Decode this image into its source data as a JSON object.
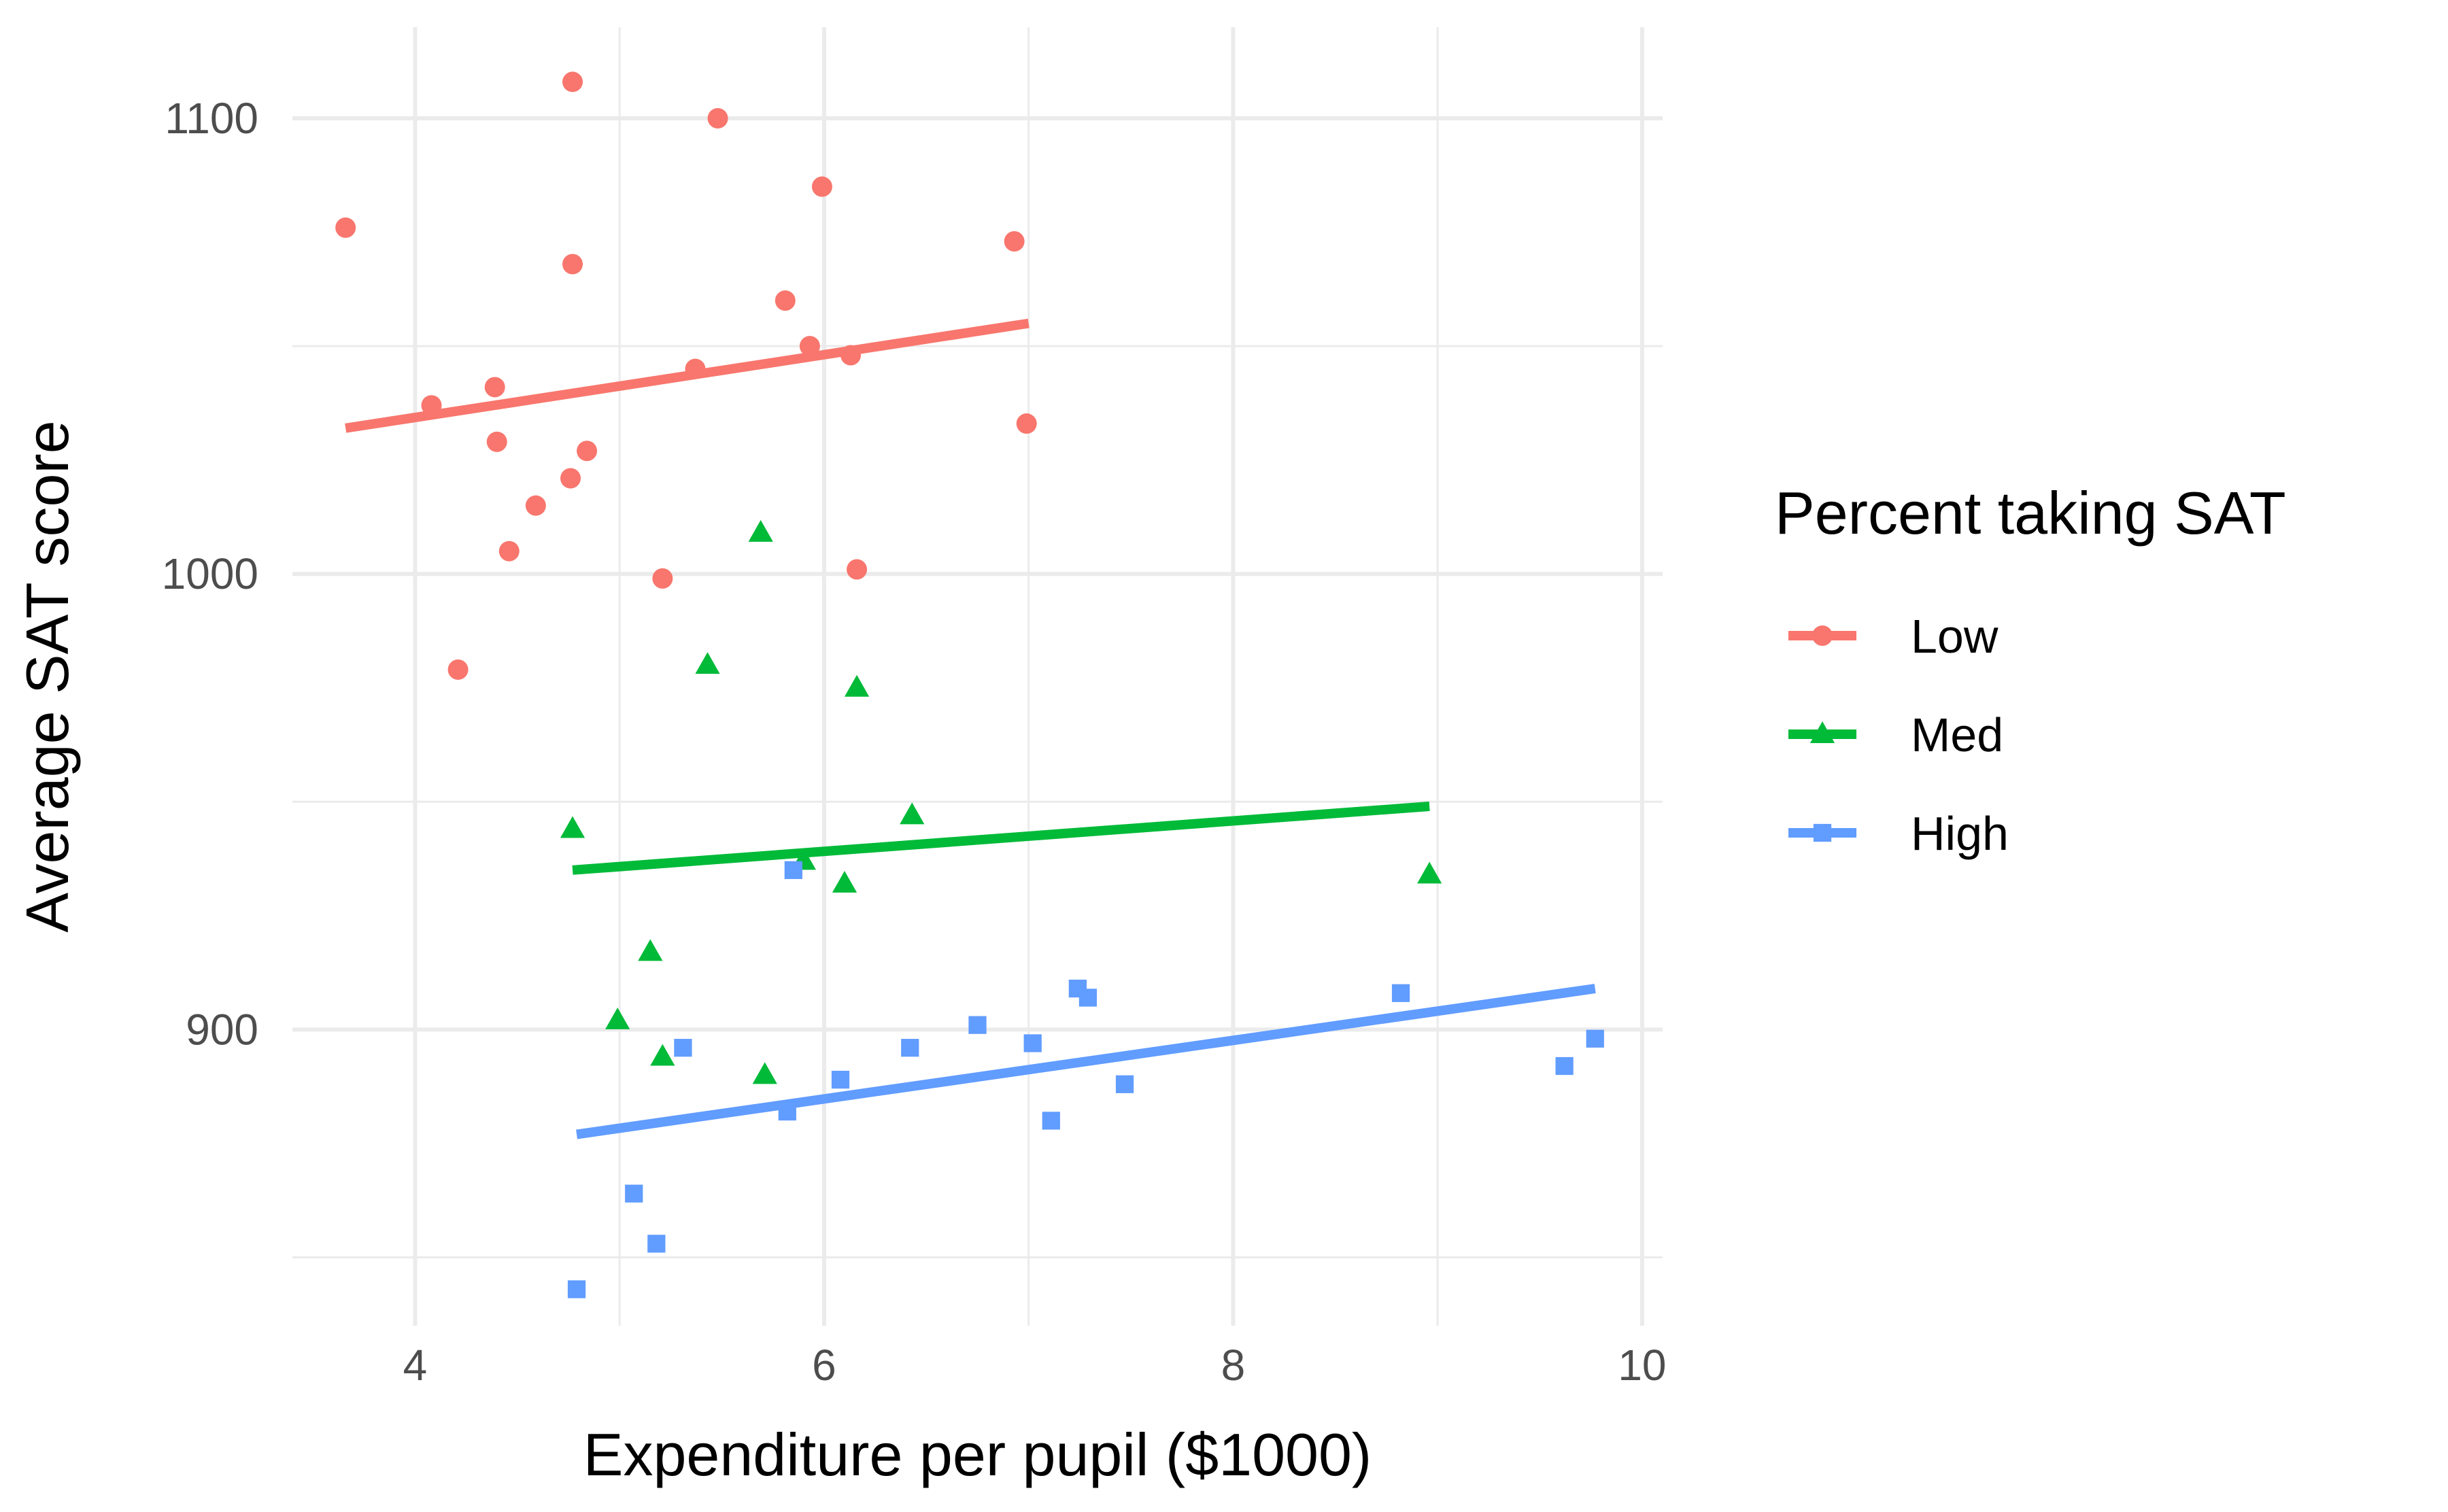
{
  "chart_data": {
    "type": "scatter",
    "title": "",
    "xlabel": "Expenditure per pupil ($1000)",
    "ylabel": "Average SAT score",
    "xlim": [
      3.4,
      10.1
    ],
    "ylim": [
      835,
      1120
    ],
    "x_ticks": [
      4,
      6,
      8,
      10
    ],
    "x_tick_labels": [
      "4",
      "6",
      "8",
      "10"
    ],
    "y_ticks": [
      900,
      1000,
      1100
    ],
    "y_tick_labels": [
      "900",
      "1000",
      "1100"
    ],
    "y_minor_grid": [
      850,
      950,
      1050
    ],
    "x_minor_grid": [
      5,
      7,
      9
    ],
    "grid": true,
    "legend": {
      "title": "Percent taking SAT",
      "position": "right"
    },
    "series": [
      {
        "name": "Low",
        "color": "#F8766D",
        "shape": "circle",
        "points": [
          [
            3.66,
            1076
          ],
          [
            4.77,
            1108
          ],
          [
            5.48,
            1100
          ],
          [
            5.99,
            1085
          ],
          [
            6.93,
            1073
          ],
          [
            4.77,
            1068
          ],
          [
            5.81,
            1060
          ],
          [
            5.93,
            1050
          ],
          [
            6.13,
            1048
          ],
          [
            5.37,
            1045
          ],
          [
            4.39,
            1041
          ],
          [
            4.08,
            1037
          ],
          [
            4.4,
            1029
          ],
          [
            4.84,
            1027
          ],
          [
            4.76,
            1021
          ],
          [
            4.59,
            1015
          ],
          [
            6.99,
            1033
          ],
          [
            4.46,
            1005
          ],
          [
            6.16,
            1001
          ],
          [
            5.21,
            999
          ],
          [
            4.21,
            979
          ]
        ],
        "fit": [
          [
            3.66,
            1032
          ],
          [
            7.0,
            1055
          ]
        ]
      },
      {
        "name": "Med",
        "color": "#00BA38",
        "shape": "triangle",
        "points": [
          [
            5.69,
            1009
          ],
          [
            5.43,
            980
          ],
          [
            6.16,
            975
          ],
          [
            4.77,
            944
          ],
          [
            6.43,
            947
          ],
          [
            5.9,
            937
          ],
          [
            6.1,
            932
          ],
          [
            8.96,
            934
          ],
          [
            5.15,
            917
          ],
          [
            4.99,
            902
          ],
          [
            5.21,
            894
          ],
          [
            5.71,
            890
          ]
        ],
        "fit": [
          [
            4.77,
            935
          ],
          [
            8.96,
            949
          ]
        ]
      },
      {
        "name": "High",
        "color": "#619CFF",
        "shape": "square",
        "points": [
          [
            5.85,
            935
          ],
          [
            7.24,
            909
          ],
          [
            7.29,
            907
          ],
          [
            8.82,
            908
          ],
          [
            6.75,
            901
          ],
          [
            5.31,
            896
          ],
          [
            6.42,
            896
          ],
          [
            7.02,
            897
          ],
          [
            9.77,
            898
          ],
          [
            6.08,
            889
          ],
          [
            7.47,
            888
          ],
          [
            9.62,
            892
          ],
          [
            5.82,
            882
          ],
          [
            7.11,
            880
          ],
          [
            5.07,
            864
          ],
          [
            5.18,
            853
          ],
          [
            4.79,
            843
          ]
        ],
        "fit": [
          [
            4.79,
            877
          ],
          [
            9.77,
            909
          ]
        ]
      }
    ]
  }
}
